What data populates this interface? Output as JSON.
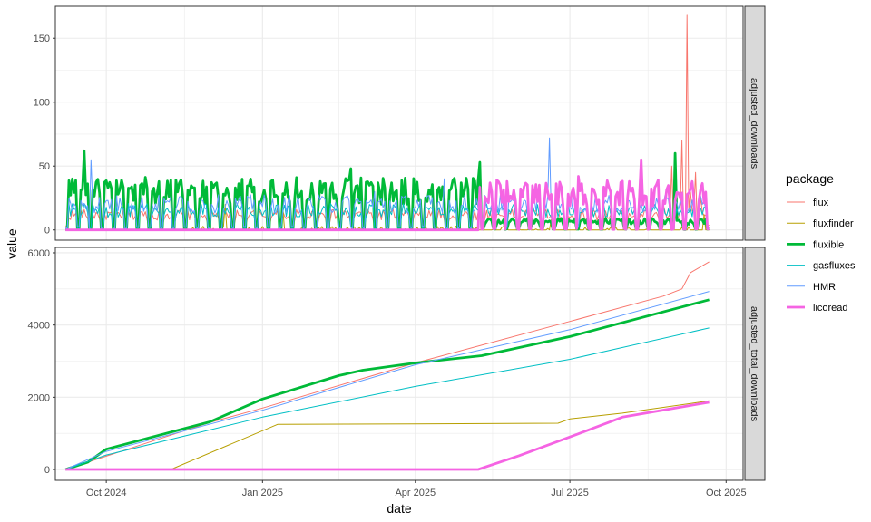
{
  "chart_data": {
    "type": "line",
    "xlabel": "date",
    "ylabel": "value",
    "x_range": [
      "2024-09-01",
      "2025-10-11"
    ],
    "x_ticks": [
      {
        "date": "2024-10-01",
        "label": "Oct 2024"
      },
      {
        "date": "2025-01-01",
        "label": "Jan 2025"
      },
      {
        "date": "2025-04-01",
        "label": "Apr 2025"
      },
      {
        "date": "2025-07-01",
        "label": "Jul 2025"
      },
      {
        "date": "2025-10-01",
        "label": "Oct 2025"
      }
    ],
    "grid": true,
    "legend": {
      "title": "package",
      "position": "right",
      "entries": [
        {
          "label": "flux",
          "color": "#F8766D",
          "bold": false
        },
        {
          "label": "fluxfinder",
          "color": "#B79F00",
          "bold": false
        },
        {
          "label": "fluxible",
          "color": "#00BA38",
          "bold": true
        },
        {
          "label": "gasfluxes",
          "color": "#00BFC4",
          "bold": false
        },
        {
          "label": "HMR",
          "color": "#619CFF",
          "bold": false
        },
        {
          "label": "licoread",
          "color": "#F564E3",
          "bold": true
        }
      ]
    },
    "panels": [
      {
        "strip": "adjusted_downloads",
        "ylim": [
          -8,
          175
        ],
        "y_ticks": [
          0,
          50,
          100,
          150
        ],
        "series": [
          {
            "name": "flux",
            "start": "2024-09-07",
            "end": "2025-09-21",
            "pattern": "weekly",
            "low": 4,
            "high": 14,
            "points": [
              [
                "2025-08-25",
                20
              ],
              [
                "2025-08-30",
                50
              ],
              [
                "2025-09-05",
                70
              ],
              [
                "2025-09-08",
                168
              ],
              [
                "2025-09-10",
                30
              ],
              [
                "2025-09-13",
                45
              ],
              [
                "2025-09-16",
                25
              ]
            ]
          },
          {
            "name": "fluxfinder",
            "start": "2024-09-07",
            "end": "2025-09-21",
            "pattern": "sparse",
            "active_from": "2024-11-08",
            "low": 0,
            "high": 3,
            "points": [
              [
                "2024-12-10",
                20
              ],
              [
                "2025-01-13",
                15
              ],
              [
                "2025-06-20",
                8
              ],
              [
                "2025-09-18",
                12
              ]
            ]
          },
          {
            "name": "fluxible",
            "start": "2024-09-07",
            "end": "2025-09-21",
            "pattern": "weekly",
            "low": 1,
            "high": 36,
            "fade_from": "2025-05-10",
            "faded_high": 8,
            "points": [
              [
                "2024-09-11",
                40
              ],
              [
                "2024-09-18",
                62
              ],
              [
                "2025-02-22",
                48
              ],
              [
                "2025-05-09",
                53
              ],
              [
                "2025-09-01",
                60
              ]
            ]
          },
          {
            "name": "gasfluxes",
            "start": "2024-09-07",
            "end": "2025-09-21",
            "pattern": "weekly",
            "low": 2,
            "high": 18,
            "points": [
              [
                "2025-09-12",
                20
              ]
            ]
          },
          {
            "name": "HMR",
            "start": "2024-09-07",
            "end": "2025-09-21",
            "pattern": "weekly",
            "low": 3,
            "high": 24,
            "points": [
              [
                "2024-09-22",
                55
              ],
              [
                "2025-03-08",
                30
              ],
              [
                "2025-04-18",
                40
              ],
              [
                "2025-06-19",
                72
              ]
            ]
          },
          {
            "name": "licoread",
            "start": "2024-09-07",
            "end": "2025-09-21",
            "pattern": "weekly",
            "active_from": "2025-05-09",
            "low": 1,
            "high": 34,
            "points": [
              [
                "2025-05-25",
                38
              ],
              [
                "2025-07-06",
                42
              ],
              [
                "2025-08-12",
                55
              ]
            ]
          }
        ]
      },
      {
        "strip": "adjusted_total_downloads",
        "ylim": [
          -300,
          6150
        ],
        "y_ticks": [
          0,
          2000,
          4000,
          6000
        ],
        "series": [
          {
            "name": "flux",
            "points": [
              [
                "2024-09-07",
                0
              ],
              [
                "2024-12-01",
                1300
              ],
              [
                "2025-01-01",
                1700
              ],
              [
                "2025-04-01",
                2950
              ],
              [
                "2025-07-01",
                4100
              ],
              [
                "2025-08-25",
                4800
              ],
              [
                "2025-09-05",
                5000
              ],
              [
                "2025-09-10",
                5450
              ],
              [
                "2025-09-21",
                5750
              ]
            ]
          },
          {
            "name": "fluxfinder",
            "points": [
              [
                "2024-09-07",
                0
              ],
              [
                "2024-11-08",
                0
              ],
              [
                "2025-01-10",
                1250
              ],
              [
                "2025-04-01",
                1260
              ],
              [
                "2025-06-24",
                1280
              ],
              [
                "2025-07-01",
                1400
              ],
              [
                "2025-08-01",
                1560
              ],
              [
                "2025-09-21",
                1900
              ]
            ]
          },
          {
            "name": "fluxible",
            "points": [
              [
                "2024-09-07",
                0
              ],
              [
                "2024-09-20",
                200
              ],
              [
                "2024-10-01",
                560
              ],
              [
                "2024-12-01",
                1320
              ],
              [
                "2025-01-01",
                1950
              ],
              [
                "2025-02-15",
                2600
              ],
              [
                "2025-03-01",
                2750
              ],
              [
                "2025-04-01",
                2950
              ],
              [
                "2025-05-10",
                3150
              ],
              [
                "2025-07-01",
                3680
              ],
              [
                "2025-09-21",
                4700
              ]
            ]
          },
          {
            "name": "gasfluxes",
            "points": [
              [
                "2024-09-07",
                0
              ],
              [
                "2024-10-01",
                400
              ],
              [
                "2025-01-01",
                1450
              ],
              [
                "2025-04-01",
                2300
              ],
              [
                "2025-07-01",
                3050
              ],
              [
                "2025-09-21",
                3920
              ]
            ]
          },
          {
            "name": "HMR",
            "points": [
              [
                "2024-09-07",
                0
              ],
              [
                "2024-10-01",
                500
              ],
              [
                "2025-01-01",
                1640
              ],
              [
                "2025-04-01",
                2900
              ],
              [
                "2025-07-01",
                3870
              ],
              [
                "2025-09-21",
                4930
              ]
            ]
          },
          {
            "name": "licoread",
            "points": [
              [
                "2024-09-07",
                0
              ],
              [
                "2025-05-08",
                0
              ],
              [
                "2025-06-01",
                380
              ],
              [
                "2025-07-01",
                900
              ],
              [
                "2025-08-01",
                1450
              ],
              [
                "2025-09-21",
                1860
              ]
            ]
          }
        ]
      }
    ]
  }
}
